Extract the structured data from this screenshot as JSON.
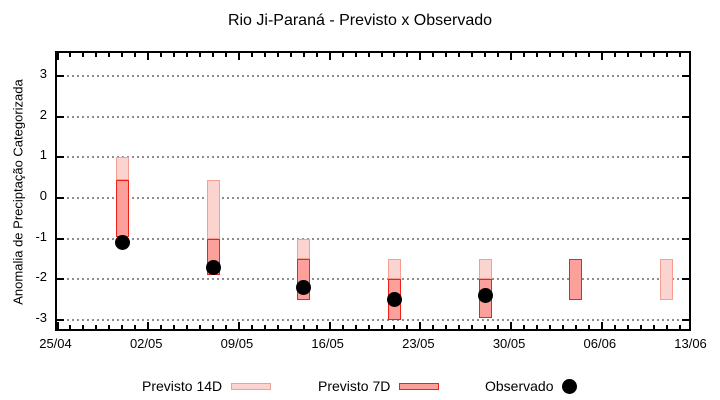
{
  "chart_data": {
    "type": "bar",
    "title": "Rio Ji-Paraná - Previsto x Observado",
    "ylabel": "Anomalia de Preciptação Categorizada",
    "xlabel": "",
    "grid": true,
    "legend_position": "bottom",
    "x_tick_labels": [
      "25/04",
      "02/05",
      "09/05",
      "16/05",
      "23/05",
      "30/05",
      "06/06",
      "13/06"
    ],
    "x_tick_days": [
      0,
      7,
      14,
      21,
      28,
      35,
      42,
      49
    ],
    "xlim_days": [
      0,
      49
    ],
    "y_ticks": [
      3,
      2,
      1,
      0,
      -1,
      -2,
      -3
    ],
    "ylim": [
      -3.32,
      3.56
    ],
    "groups": [
      {
        "date": "30/04",
        "day": 5,
        "previsto14": [
          1.0,
          0.45
        ],
        "previsto7": [
          0.45,
          -0.95
        ],
        "observado": -1.1
      },
      {
        "date": "07/05",
        "day": 12,
        "previsto14": [
          0.45,
          -1.0
        ],
        "previsto7": [
          -1.0,
          -1.9
        ],
        "observado": -1.7
      },
      {
        "date": "14/05",
        "day": 19,
        "previsto14": [
          -1.0,
          -1.5
        ],
        "previsto7": [
          -1.5,
          -2.5
        ],
        "observado": -2.2
      },
      {
        "date": "21/05",
        "day": 26,
        "previsto14": [
          -1.5,
          -2.0
        ],
        "previsto7": [
          -2.0,
          -3.0
        ],
        "observado": -2.5
      },
      {
        "date": "28/05",
        "day": 33,
        "previsto14": [
          -1.5,
          -2.0
        ],
        "previsto7": [
          -2.0,
          -2.95
        ],
        "observado": -2.4
      },
      {
        "date": "04/06",
        "day": 40,
        "previsto14": null,
        "previsto7": [
          -1.5,
          -2.5
        ],
        "observado": null
      },
      {
        "date": "11/06",
        "day": 47,
        "previsto14": [
          -1.5,
          -2.5
        ],
        "previsto7": null,
        "observado": null
      }
    ],
    "legend": [
      {
        "label": "Previsto 14D",
        "series": "previsto14",
        "marker": "box"
      },
      {
        "label": "Previsto 7D",
        "series": "previsto7",
        "marker": "box"
      },
      {
        "label": "Observado",
        "series": "observado",
        "marker": "dot"
      }
    ],
    "colors": {
      "previsto14_fill": "#fbd4cf",
      "previsto14_border": "#f49f96",
      "previsto7_fill": "#fba09a",
      "previsto7_border": "#ef2118",
      "observado": "#000000",
      "grid": "#8e8e8e",
      "axis": "#000000",
      "background": "#ffffff"
    }
  }
}
